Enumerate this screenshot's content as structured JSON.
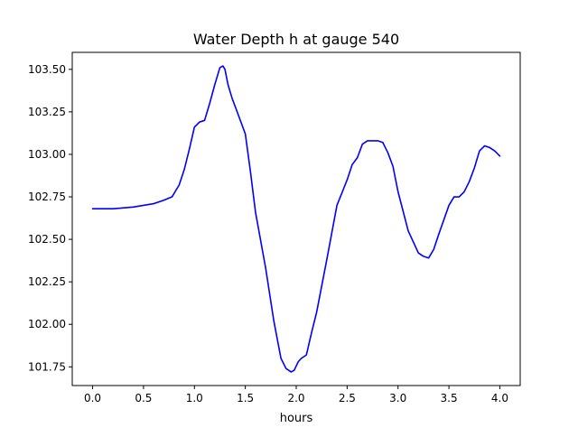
{
  "chart_data": {
    "type": "line",
    "title": "Water Depth h at gauge 540",
    "xlabel": "hours",
    "ylabel": "",
    "xlim": [
      -0.2,
      4.2
    ],
    "ylim": [
      101.64,
      103.6
    ],
    "xticks": [
      0.0,
      0.5,
      1.0,
      1.5,
      2.0,
      2.5,
      3.0,
      3.5,
      4.0
    ],
    "xtick_labels": [
      "0.0",
      "0.5",
      "1.0",
      "1.5",
      "2.0",
      "2.5",
      "3.0",
      "3.5",
      "4.0"
    ],
    "yticks": [
      101.75,
      102.0,
      102.25,
      102.5,
      102.75,
      103.0,
      103.25,
      103.5
    ],
    "ytick_labels": [
      "101.75",
      "102.00",
      "102.25",
      "102.50",
      "102.75",
      "103.00",
      "103.25",
      "103.50"
    ],
    "grid": false,
    "series": [
      {
        "color": "#0000ff",
        "x": [
          0.0,
          0.2,
          0.4,
          0.6,
          0.7,
          0.78,
          0.85,
          0.9,
          0.95,
          1.0,
          1.05,
          1.1,
          1.15,
          1.2,
          1.25,
          1.28,
          1.3,
          1.33,
          1.37,
          1.42,
          1.5,
          1.55,
          1.6,
          1.7,
          1.78,
          1.85,
          1.9,
          1.95,
          1.98,
          2.02,
          2.05,
          2.1,
          2.15,
          2.2,
          2.3,
          2.4,
          2.5,
          2.55,
          2.6,
          2.65,
          2.7,
          2.75,
          2.8,
          2.85,
          2.9,
          2.95,
          3.0,
          3.1,
          3.2,
          3.25,
          3.3,
          3.35,
          3.4,
          3.5,
          3.55,
          3.6,
          3.65,
          3.7,
          3.75,
          3.8,
          3.85,
          3.9,
          3.95,
          4.0
        ],
        "values": [
          102.68,
          102.68,
          102.69,
          102.71,
          102.73,
          102.75,
          102.82,
          102.91,
          103.03,
          103.16,
          103.19,
          103.2,
          103.3,
          103.41,
          103.51,
          103.52,
          103.5,
          103.41,
          103.33,
          103.25,
          103.12,
          102.9,
          102.66,
          102.33,
          102.02,
          101.8,
          101.74,
          101.72,
          101.73,
          101.78,
          101.8,
          101.82,
          101.95,
          102.07,
          102.38,
          102.7,
          102.85,
          102.94,
          102.98,
          103.06,
          103.08,
          103.08,
          103.08,
          103.07,
          103.01,
          102.93,
          102.78,
          102.55,
          102.42,
          102.4,
          102.39,
          102.44,
          102.53,
          102.7,
          102.75,
          102.75,
          102.78,
          102.84,
          102.92,
          103.02,
          103.05,
          103.04,
          103.02,
          102.99
        ]
      }
    ]
  }
}
